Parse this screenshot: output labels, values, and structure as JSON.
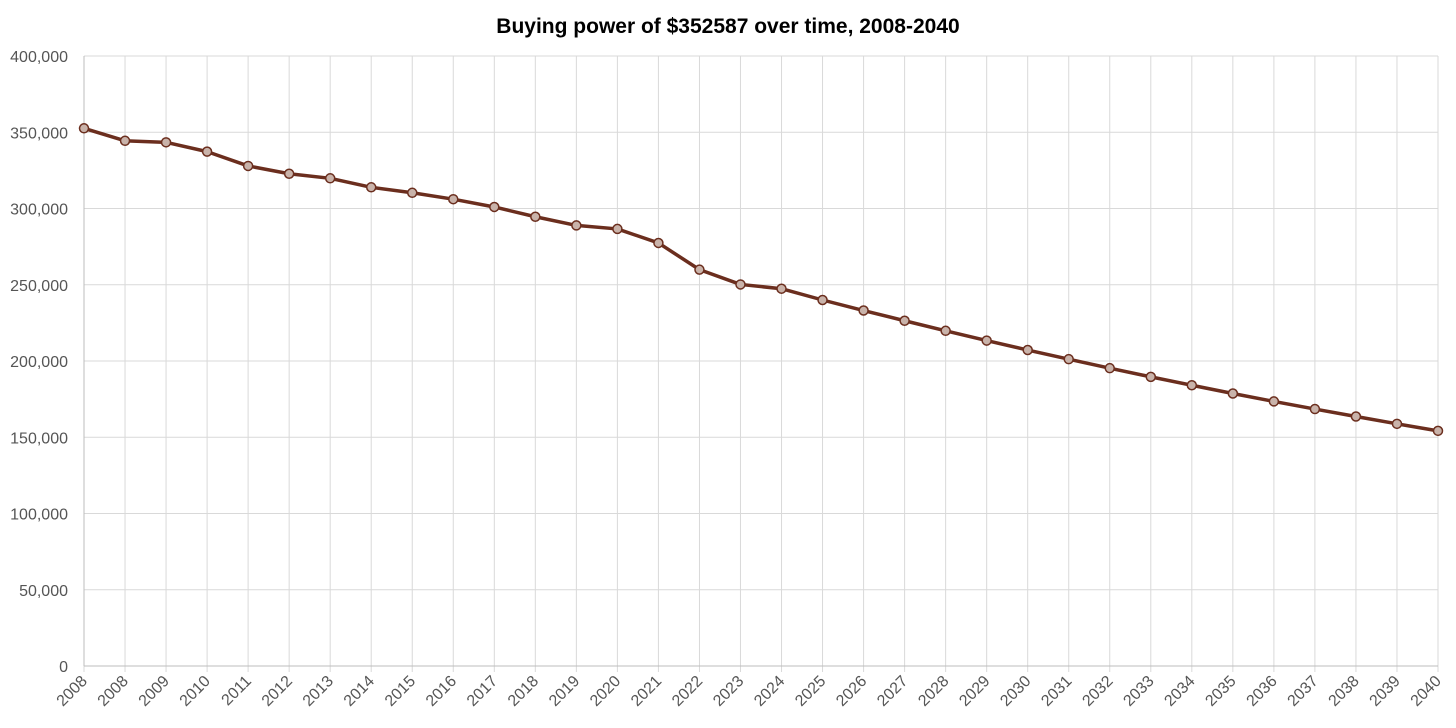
{
  "chart_data": {
    "type": "line",
    "title": "Buying power of $352587 over time, 2008-2040",
    "xlabel": "",
    "ylabel": "",
    "ylim": [
      0,
      400000
    ],
    "y_ticks": [
      0,
      50000,
      100000,
      150000,
      200000,
      250000,
      300000,
      350000,
      400000
    ],
    "y_tick_labels": [
      "0",
      "50,000",
      "100,000",
      "150,000",
      "200,000",
      "250,000",
      "300,000",
      "350,000",
      "400,000"
    ],
    "categories": [
      "2008",
      "2008",
      "2009",
      "2010",
      "2011",
      "2012",
      "2013",
      "2014",
      "2015",
      "2016",
      "2017",
      "2018",
      "2019",
      "2020",
      "2021",
      "2022",
      "2023",
      "2024",
      "2025",
      "2026",
      "2027",
      "2028",
      "2029",
      "2030",
      "2031",
      "2032",
      "2033",
      "2034",
      "2035",
      "2036",
      "2037",
      "2038",
      "2039",
      "2040"
    ],
    "grid": true,
    "legend": "none",
    "series": [
      {
        "color": "#6b2e1e",
        "values": [
          352587,
          344400,
          343400,
          337300,
          327900,
          322800,
          319800,
          313900,
          310300,
          306100,
          301000,
          294600,
          288900,
          286600,
          277400,
          259900,
          250200,
          247400,
          240000,
          233100,
          226400,
          219800,
          213400,
          207200,
          201200,
          195300,
          189600,
          184100,
          178700,
          173500,
          168500,
          163600,
          158800,
          154200
        ]
      }
    ]
  }
}
